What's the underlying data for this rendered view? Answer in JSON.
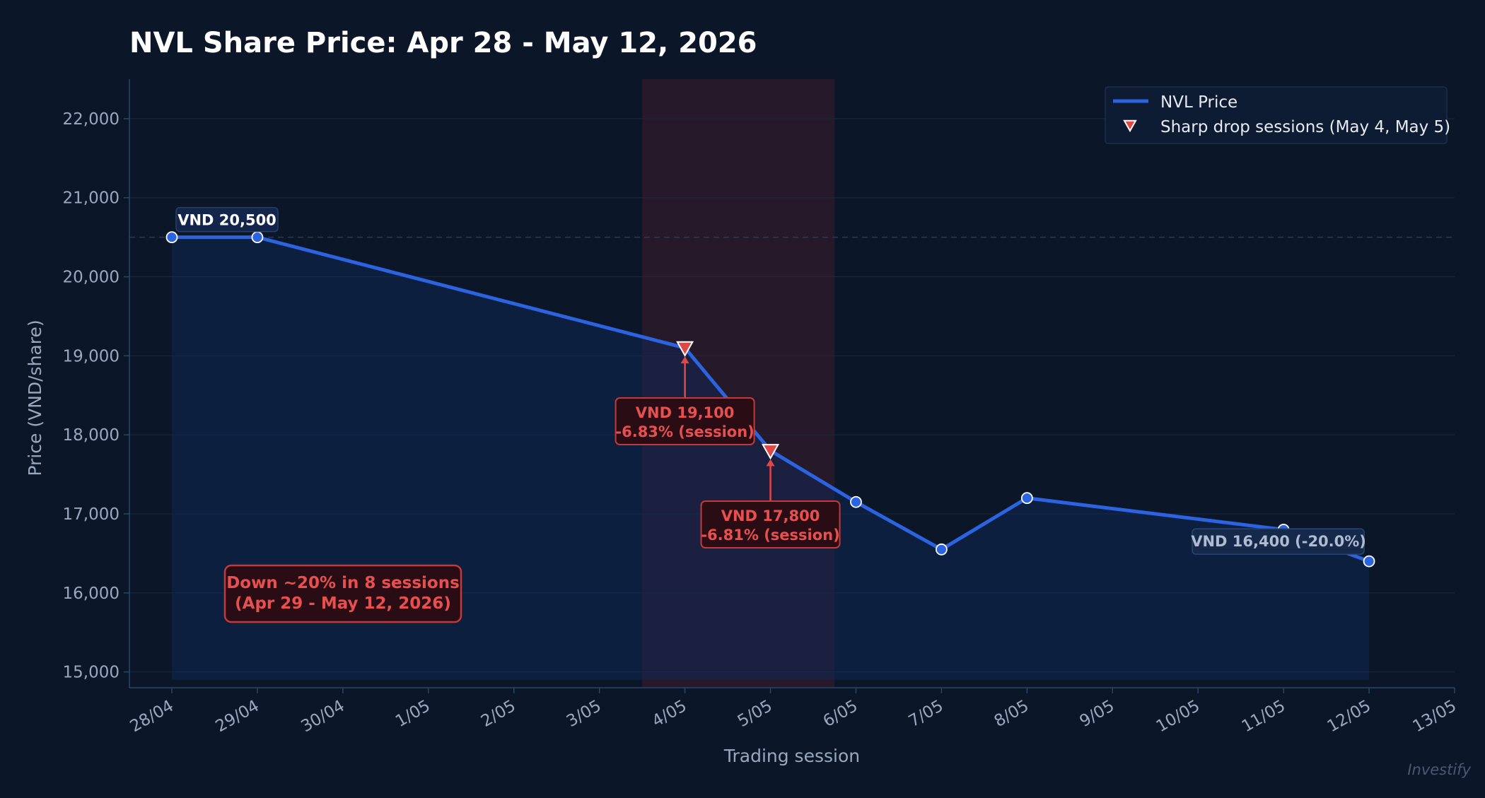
{
  "chart_data": {
    "type": "line",
    "title": "NVL Share Price: Apr 28 - May 12, 2026",
    "xlabel": "Trading session",
    "ylabel": "Price (VND/share)",
    "ylim": [
      14800,
      22500
    ],
    "y_ticks": [
      15000,
      16000,
      17000,
      18000,
      19000,
      20000,
      21000,
      22000
    ],
    "y_tick_labels": [
      "15,000",
      "16,000",
      "17,000",
      "18,000",
      "19,000",
      "20,000",
      "21,000",
      "22,000"
    ],
    "x_ticks": [
      "2026-04-28",
      "2026-04-29",
      "2026-04-30",
      "2026-05-01",
      "2026-05-02",
      "2026-05-03",
      "2026-05-04",
      "2026-05-05",
      "2026-05-06",
      "2026-05-07",
      "2026-05-08",
      "2026-05-09",
      "2026-05-10",
      "2026-05-11",
      "2026-05-12",
      "2026-05-13"
    ],
    "x_tick_labels": [
      "28/04",
      "29/04",
      "30/04",
      "1/05",
      "2/05",
      "3/05",
      "4/05",
      "5/05",
      "6/05",
      "7/05",
      "8/05",
      "9/05",
      "10/05",
      "11/05",
      "12/05",
      "13/05"
    ],
    "grid": true,
    "legend_position": "top-right",
    "series": [
      {
        "name": "NVL Price",
        "color": "#2b63e0",
        "x": [
          "2026-04-28",
          "2026-04-29",
          "2026-05-04",
          "2026-05-05",
          "2026-05-06",
          "2026-05-07",
          "2026-05-08",
          "2026-05-11",
          "2026-05-12"
        ],
        "values": [
          20500,
          20500,
          19100,
          17800,
          17150,
          16550,
          17200,
          16800,
          16400
        ]
      }
    ],
    "drop_markers": {
      "name": "Sharp drop sessions (May 4, May 5)",
      "color": "#e04848",
      "x": [
        "2026-05-04",
        "2026-05-05"
      ],
      "values": [
        19100,
        17800
      ]
    },
    "shaded_region": {
      "x_start": "2026-05-03",
      "x_end": "2026-05-05",
      "color": "#2a1a2a"
    },
    "reference_line": {
      "y": 20500
    },
    "annotations": {
      "start_label": "VND 20,500",
      "end_label": "VND 16,400  (-20.0%)",
      "drop1_line1": "VND 19,100",
      "drop1_line2": "-6.83% (session)",
      "drop2_line1": "VND 17,800",
      "drop2_line2": "-6.81% (session)",
      "summary_line1": "Down ~20% in 8 sessions",
      "summary_line2": "(Apr 29 - May 12, 2026)"
    },
    "watermark": "Investify"
  }
}
